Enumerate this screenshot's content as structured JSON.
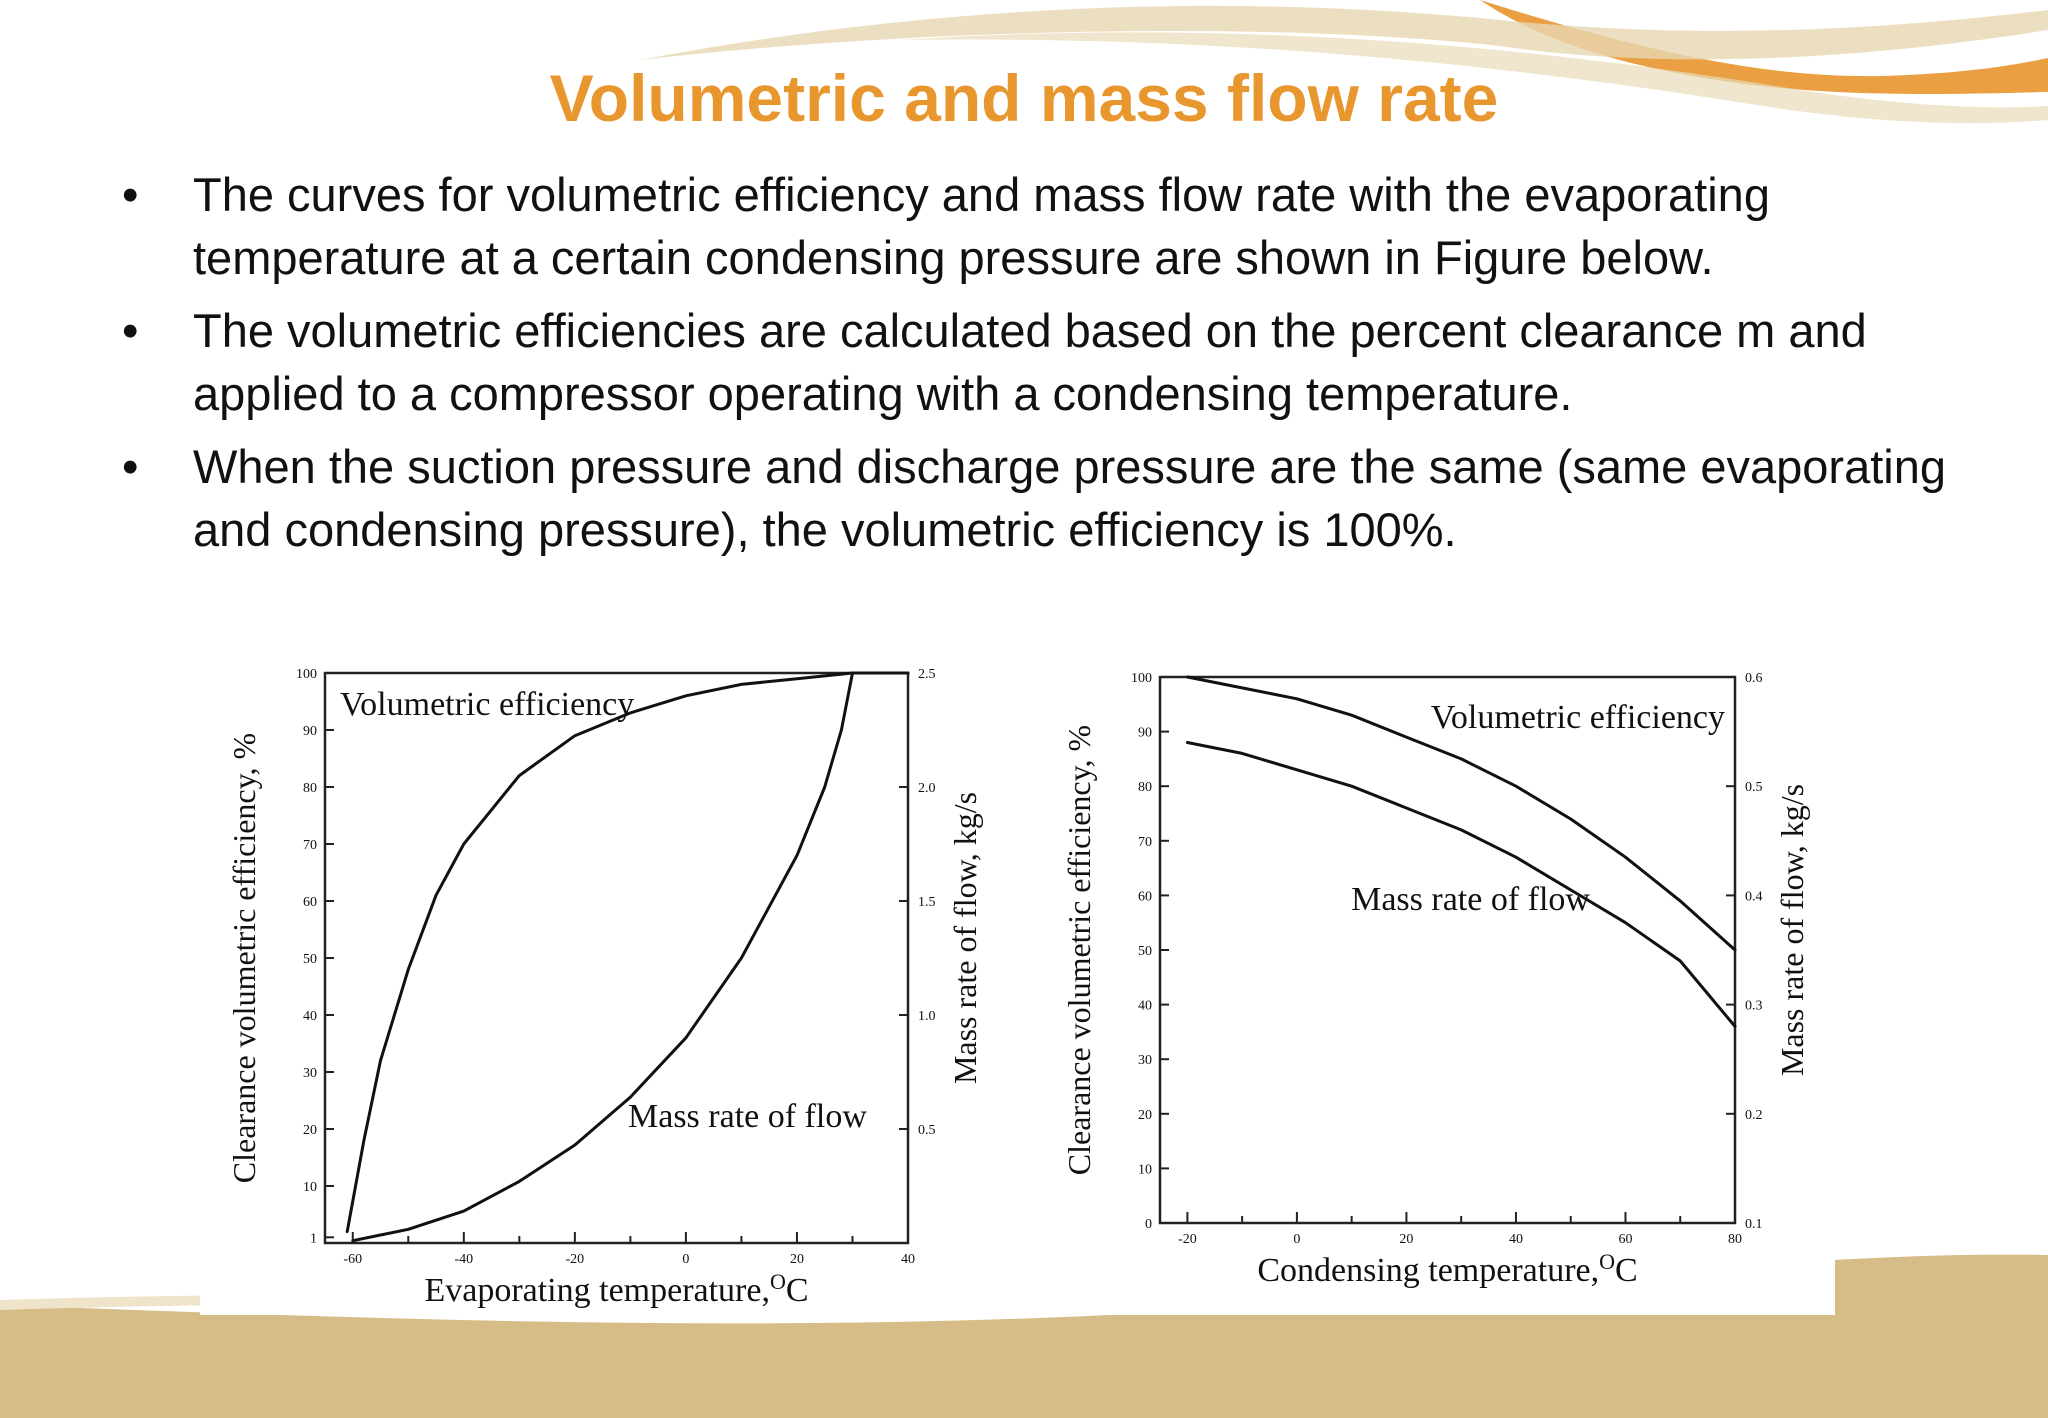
{
  "slide": {
    "title": "Volumetric and mass flow rate",
    "bullets": [
      "The curves for volumetric efficiency and mass flow rate with the evaporating temperature at a certain condensing pressure are shown in Figure  below.",
      "The volumetric efficiencies are calculated based on the percent clearance m and applied to a compressor operating with a condensing temperature.",
      "When the suction pressure and discharge pressure are the same (same evaporating and condensing pressure), the volumetric efficiency is 100%."
    ],
    "bullet_symbol": "•",
    "colors": {
      "title": "#e8962e",
      "decor_tan": "#d6bc86",
      "decor_orange": "#e8962e"
    }
  },
  "chart_data": [
    {
      "type": "line",
      "title": "",
      "xlabel": "Evaporating temperature,",
      "xlabel_unit": "C",
      "xlabel_unit_sup": "O",
      "ylabel": "Clearance volumetric efficiency, %",
      "y2label": "Mass rate of flow, kg/s",
      "xlim": [
        -65,
        40
      ],
      "ylim": [
        0,
        100
      ],
      "y2lim": [
        0,
        2.5
      ],
      "xticks": [
        -60,
        -40,
        -20,
        0,
        20,
        40
      ],
      "yticks": [
        100,
        90,
        80,
        70,
        60,
        50,
        40,
        30,
        20,
        10,
        1
      ],
      "y2ticks": [
        2.5,
        2.0,
        1.5,
        1.0,
        0.5
      ],
      "grid": false,
      "series": [
        {
          "name": "Volumetric efficiency",
          "axis": "left",
          "x": [
            -61,
            -58,
            -55,
            -50,
            -45,
            -40,
            -30,
            -20,
            -10,
            0,
            10,
            20,
            30,
            40
          ],
          "values": [
            2,
            18,
            32,
            48,
            61,
            70,
            82,
            89,
            93,
            96,
            98,
            99,
            100,
            100
          ]
        },
        {
          "name": "Mass rate of flow",
          "axis": "right",
          "x": [
            -60,
            -50,
            -40,
            -30,
            -20,
            -10,
            0,
            10,
            20,
            25,
            28,
            30,
            40
          ],
          "values": [
            0.01,
            0.06,
            0.14,
            0.27,
            0.43,
            0.64,
            0.9,
            1.25,
            1.7,
            2.0,
            2.25,
            2.5,
            2.5
          ]
        }
      ]
    },
    {
      "type": "line",
      "title": "",
      "xlabel": "Condensing temperature,",
      "xlabel_unit": "C",
      "xlabel_unit_sup": "O",
      "ylabel": "Clearance volumetric efficiency, %",
      "y2label": "Mass rate of flow, kg/s",
      "xlim": [
        -25,
        80
      ],
      "ylim": [
        0,
        100
      ],
      "y2lim": [
        0.1,
        0.6
      ],
      "xticks": [
        -20,
        0,
        20,
        40,
        60,
        80
      ],
      "yticks": [
        100,
        90,
        80,
        70,
        60,
        50,
        40,
        30,
        20,
        10,
        0
      ],
      "y2ticks": [
        0.6,
        0.5,
        0.4,
        0.3,
        0.2,
        0.1
      ],
      "grid": false,
      "series": [
        {
          "name": "Volumetric efficiency",
          "axis": "left",
          "x": [
            -20,
            -10,
            0,
            10,
            20,
            30,
            40,
            50,
            60,
            70,
            80
          ],
          "values": [
            100,
            98,
            96,
            93,
            89,
            85,
            80,
            74,
            67,
            59,
            50
          ]
        },
        {
          "name": "Mass rate of flow",
          "axis": "right",
          "x": [
            -20,
            -10,
            0,
            10,
            20,
            30,
            40,
            50,
            60,
            70,
            80
          ],
          "values": [
            0.54,
            0.53,
            0.515,
            0.5,
            0.48,
            0.46,
            0.435,
            0.405,
            0.375,
            0.34,
            0.28
          ]
        }
      ]
    }
  ]
}
